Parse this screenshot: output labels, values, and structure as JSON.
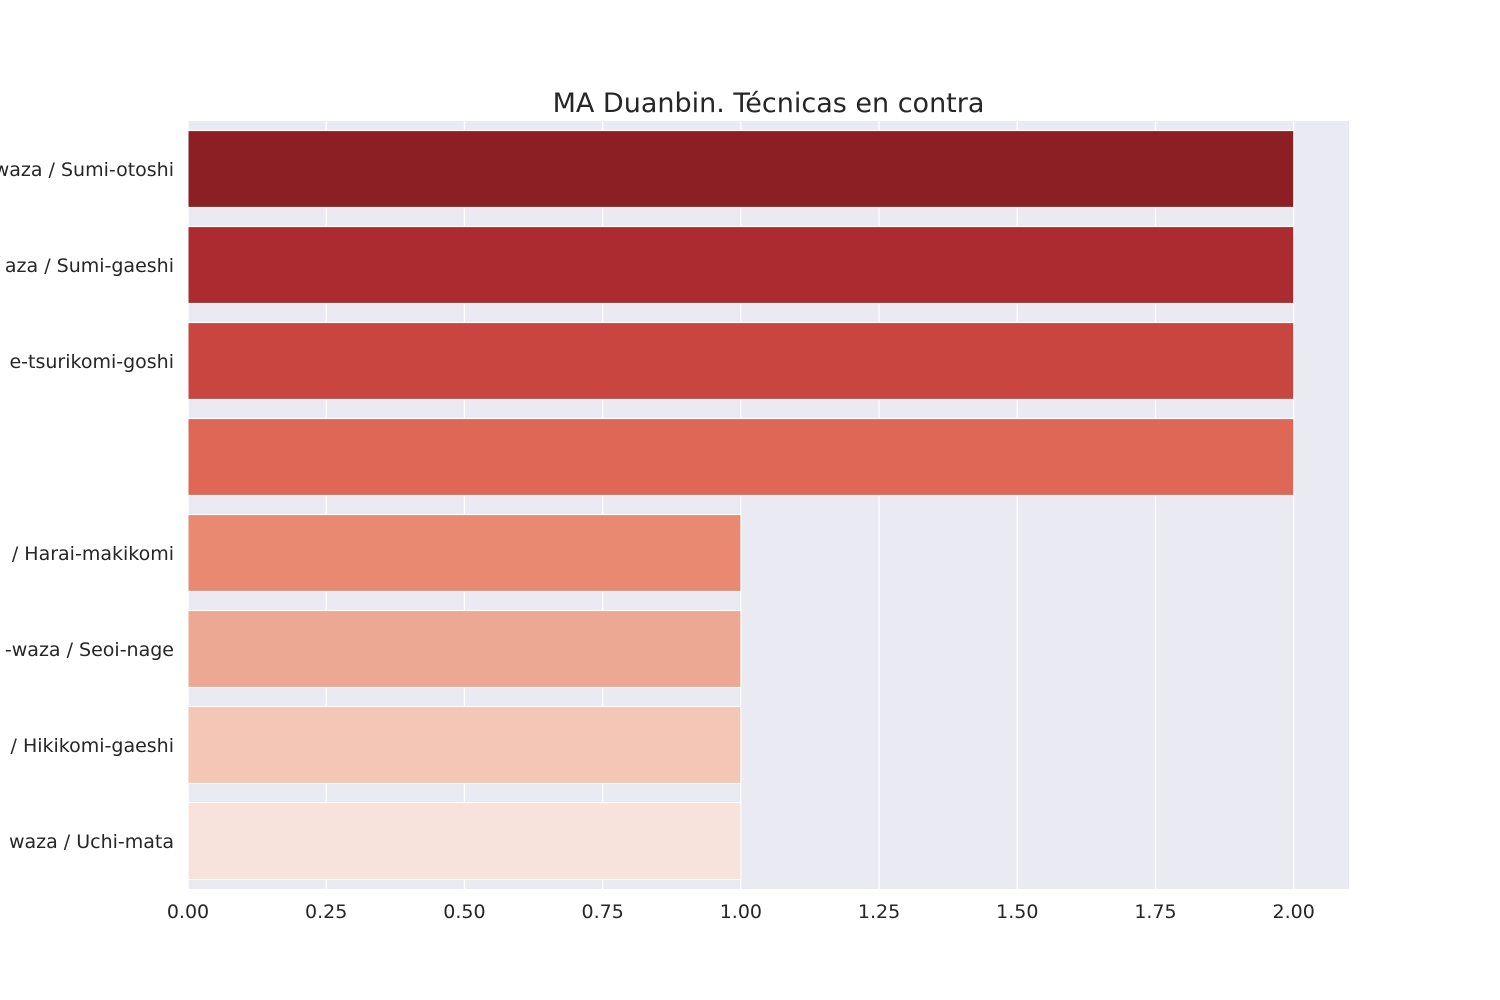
{
  "chart_data": {
    "type": "bar",
    "orientation": "horizontal",
    "title": "MA Duanbin. Técnicas en contra",
    "xlabel": "",
    "ylabel": "",
    "categories": [
      "waza / Sumi-otoshi",
      "aza / Sumi-gaeshi",
      "e-tsurikomi-goshi",
      "",
      "/ Harai-makikomi",
      "-waza / Seoi-nage",
      "/ Hikikomi-gaeshi",
      "waza / Uchi-mata"
    ],
    "values": [
      2,
      2,
      2,
      2,
      1,
      1,
      1,
      1
    ],
    "colors": [
      "#8b1f24",
      "#ab2b30",
      "#c94540",
      "#df6756",
      "#e98972",
      "#eda893",
      "#f3c6b6",
      "#f7e3db"
    ],
    "xlim": [
      0,
      2.1
    ],
    "xticks": [
      "0.00",
      "0.25",
      "0.50",
      "0.75",
      "1.00",
      "1.25",
      "1.50",
      "1.75",
      "2.00"
    ],
    "grid": true,
    "background": "#eaeaf2",
    "legend": "none"
  }
}
